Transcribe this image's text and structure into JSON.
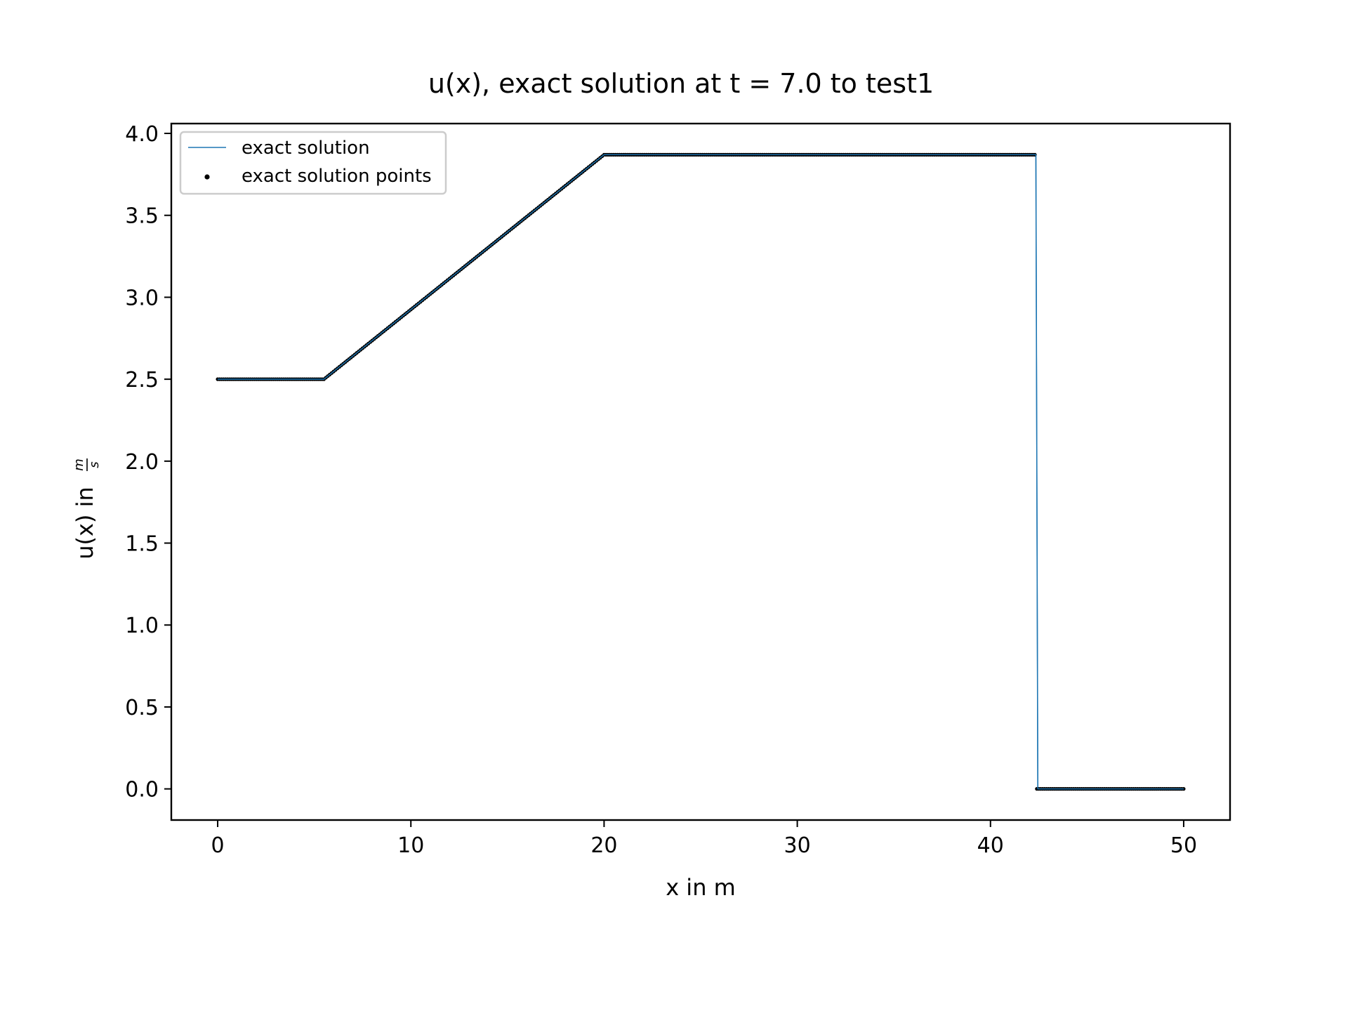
{
  "chart_data": {
    "type": "line",
    "title": "u(x), exact solution at t = 7.0 to test1",
    "xlabel": "x in m",
    "ylabel": "u(x) in",
    "ylabel_unit": {
      "numerator": "m",
      "denominator": "s"
    },
    "xlim": [
      -2.4,
      52.4
    ],
    "ylim": [
      -0.19,
      4.06
    ],
    "xticks": [
      0,
      10,
      20,
      30,
      40,
      50
    ],
    "xtick_labels": [
      "0",
      "10",
      "20",
      "30",
      "40",
      "50"
    ],
    "yticks": [
      0.0,
      0.5,
      1.0,
      1.5,
      2.0,
      2.5,
      3.0,
      3.5,
      4.0
    ],
    "ytick_labels": [
      "0.0",
      "0.5",
      "1.0",
      "1.5",
      "2.0",
      "2.5",
      "3.0",
      "3.5",
      "4.0"
    ],
    "grid": false,
    "legend": {
      "placement": "upper-left",
      "entries": [
        "exact solution",
        "exact solution points"
      ]
    },
    "series": [
      {
        "name": "exact solution",
        "kind": "line",
        "color": "#1f77b4",
        "x": [
          0,
          5.5,
          20.0,
          42.35,
          42.45,
          50
        ],
        "y": [
          2.5,
          2.5,
          3.87,
          3.87,
          0.0,
          0.0
        ]
      },
      {
        "name": "exact solution points",
        "kind": "scatter",
        "color": "#000000",
        "x_start": 0,
        "x_end": 50,
        "x_step": 0.1,
        "profile": {
          "x": [
            0,
            5.5,
            20.0,
            42.4,
            42.4,
            50
          ],
          "y": [
            2.5,
            2.5,
            3.87,
            3.87,
            0.0,
            0.0
          ]
        }
      }
    ]
  }
}
